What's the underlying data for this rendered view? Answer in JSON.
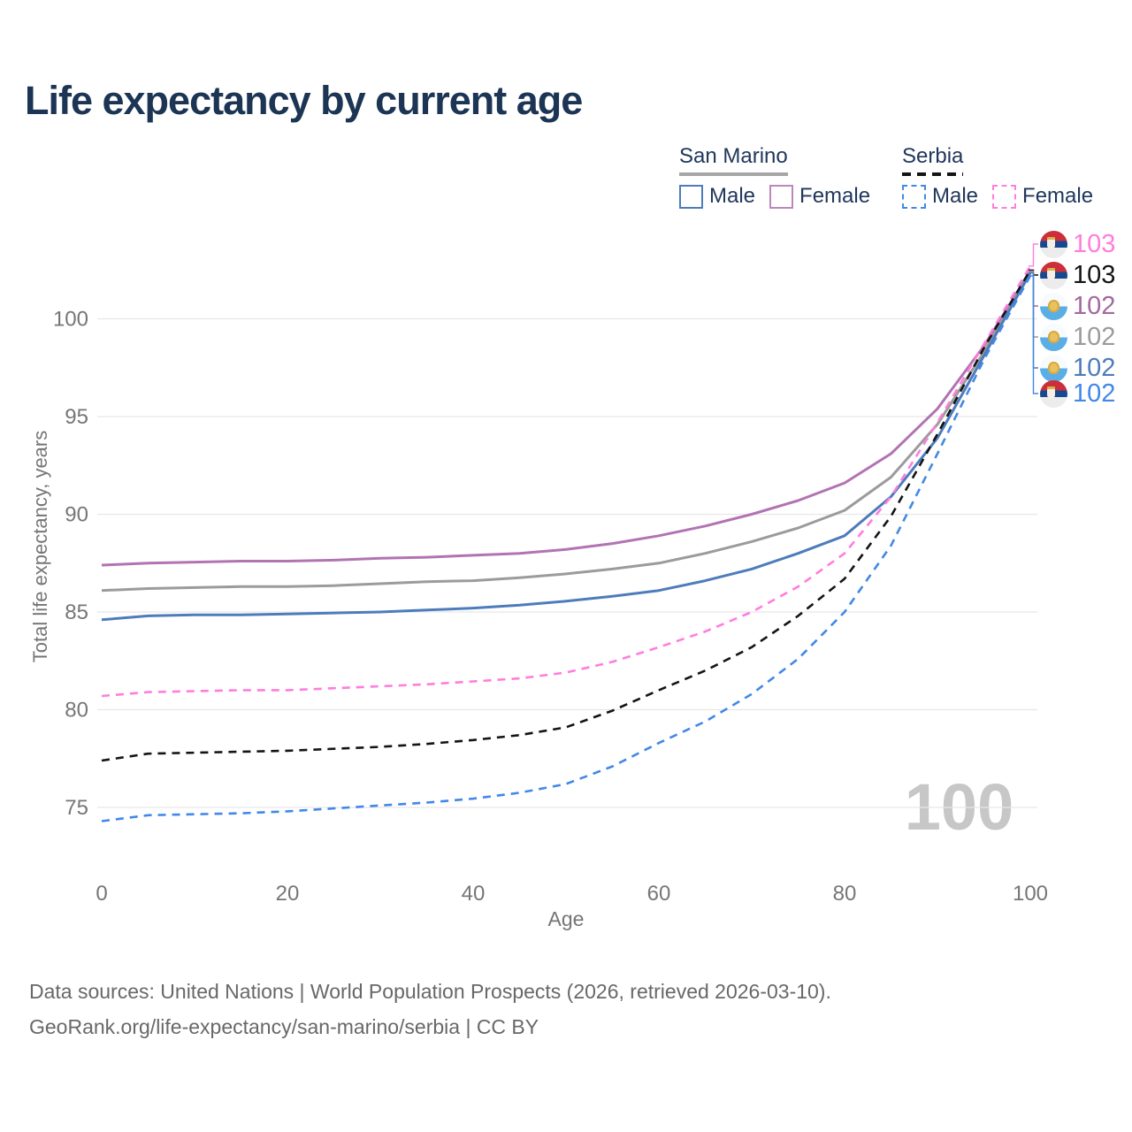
{
  "page": {
    "title": "Life expectancy by current age"
  },
  "legend": {
    "groups": [
      {
        "label": "San Marino",
        "line_style": "solid",
        "underline_color": "#a6a6a6",
        "items": [
          {
            "label": "Male",
            "color": "#4d7cbb",
            "dash": false
          },
          {
            "label": "Female",
            "color": "#bd87bc",
            "dash": false
          }
        ]
      },
      {
        "label": "Serbia",
        "line_style": "dashed",
        "underline_color": "#141414",
        "items": [
          {
            "label": "Male",
            "color": "#4288e6",
            "dash": true
          },
          {
            "label": "Female",
            "color": "#ff7ddd",
            "dash": true
          }
        ]
      }
    ]
  },
  "chart_data": {
    "type": "line",
    "title": "Life expectancy by current age",
    "xlabel": "Age",
    "ylabel": "Total life expectancy, years",
    "x_ticks": [
      0,
      20,
      40,
      60,
      80,
      100
    ],
    "y_ticks": [
      75,
      80,
      85,
      90,
      95,
      100
    ],
    "xlim": [
      0,
      100
    ],
    "ylim": [
      73.5,
      103.5
    ],
    "grid": "horizontal",
    "legend_position": "top-right",
    "age_counter": "100",
    "x": [
      0,
      5,
      10,
      15,
      20,
      25,
      30,
      35,
      40,
      45,
      50,
      55,
      60,
      65,
      70,
      75,
      80,
      85,
      90,
      95,
      100
    ],
    "series": [
      {
        "name": "San Marino Female",
        "country": "San Marino",
        "sex": "Female",
        "color": "#b273b2",
        "dash": false,
        "values": [
          87.4,
          87.5,
          87.55,
          87.6,
          87.6,
          87.65,
          87.75,
          87.8,
          87.9,
          88.0,
          88.2,
          88.5,
          88.9,
          89.4,
          90.0,
          90.7,
          91.6,
          93.1,
          95.4,
          98.6,
          102.45
        ]
      },
      {
        "name": "San Marino Both sexes",
        "country": "San Marino",
        "sex": "Both",
        "color": "#9b9b9b",
        "dash": false,
        "values": [
          86.1,
          86.2,
          86.25,
          86.3,
          86.3,
          86.35,
          86.45,
          86.55,
          86.6,
          86.75,
          86.95,
          87.2,
          87.5,
          88.0,
          88.6,
          89.3,
          90.2,
          91.9,
          94.6,
          98.3,
          102.4
        ]
      },
      {
        "name": "San Marino Male",
        "country": "San Marino",
        "sex": "Male",
        "color": "#4d7cbb",
        "dash": false,
        "values": [
          84.6,
          84.8,
          84.85,
          84.85,
          84.9,
          84.95,
          85.0,
          85.1,
          85.2,
          85.35,
          85.55,
          85.8,
          86.1,
          86.6,
          87.2,
          88.0,
          88.9,
          90.9,
          93.9,
          98.1,
          102.35
        ]
      },
      {
        "name": "Serbia Female",
        "country": "Serbia",
        "sex": "Female",
        "color": "#ff7ddd",
        "dash": true,
        "values": [
          80.7,
          80.9,
          80.95,
          81.0,
          81.0,
          81.1,
          81.2,
          81.3,
          81.45,
          81.6,
          81.9,
          82.45,
          83.2,
          84.0,
          85.0,
          86.3,
          88.0,
          90.9,
          94.7,
          98.7,
          102.7
        ]
      },
      {
        "name": "Serbia Both sexes",
        "country": "Serbia",
        "sex": "Both",
        "color": "#141414",
        "dash": true,
        "values": [
          77.4,
          77.75,
          77.8,
          77.85,
          77.9,
          78.0,
          78.1,
          78.25,
          78.45,
          78.7,
          79.1,
          79.95,
          81.0,
          82.0,
          83.2,
          84.8,
          86.7,
          89.9,
          94.1,
          98.5,
          102.5
        ]
      },
      {
        "name": "Serbia Male",
        "country": "Serbia",
        "sex": "Male",
        "color": "#4288e6",
        "dash": true,
        "values": [
          74.3,
          74.6,
          74.65,
          74.7,
          74.8,
          74.95,
          75.1,
          75.25,
          75.45,
          75.75,
          76.2,
          77.1,
          78.3,
          79.4,
          80.8,
          82.6,
          85.0,
          88.4,
          93.1,
          97.9,
          102.2
        ]
      }
    ],
    "end_labels": [
      {
        "value": "103",
        "color": "#ff7ddd",
        "flag": "serbia",
        "series": "Serbia Female",
        "end_value": 102.7
      },
      {
        "value": "103",
        "color": "#141414",
        "flag": "serbia",
        "series": "Serbia Both sexes",
        "end_value": 102.5
      },
      {
        "value": "102",
        "color": "#a4689f",
        "flag": "san-marino",
        "series": "San Marino Female",
        "end_value": 102.45
      },
      {
        "value": "102",
        "color": "#9b9b9b",
        "flag": "san-marino",
        "series": "San Marino Both sexes",
        "end_value": 102.4
      },
      {
        "value": "102",
        "color": "#4d7cbb",
        "flag": "san-marino",
        "series": "San Marino Male",
        "end_value": 102.35
      },
      {
        "value": "102",
        "color": "#4288e6",
        "flag": "serbia",
        "series": "Serbia Male",
        "end_value": 102.2
      }
    ]
  },
  "footer": {
    "line1": "Data sources: United Nations | World Population Prospects (2026, retrieved 2026-03-10).",
    "line2": "GeoRank.org/life-expectancy/san-marino/serbia | CC BY"
  }
}
